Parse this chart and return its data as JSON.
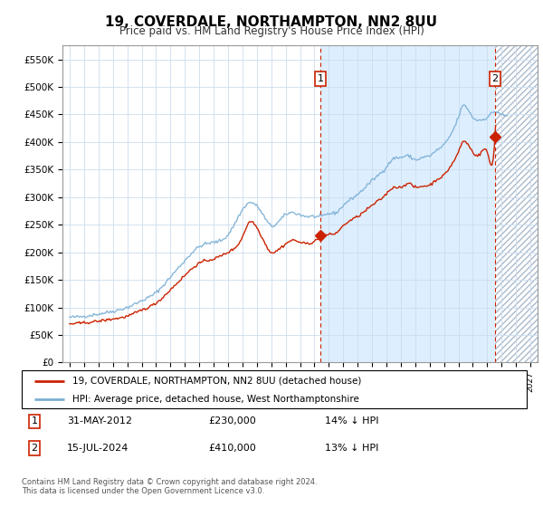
{
  "title": "19, COVERDALE, NORTHAMPTON, NN2 8UU",
  "subtitle": "Price paid vs. HM Land Registry's House Price Index (HPI)",
  "legend_line1": "19, COVERDALE, NORTHAMPTON, NN2 8UU (detached house)",
  "legend_line2": "HPI: Average price, detached house, West Northamptonshire",
  "annotation1": {
    "label": "1",
    "date": "31-MAY-2012",
    "price": "£230,000",
    "hpi": "14% ↓ HPI"
  },
  "annotation2": {
    "label": "2",
    "date": "15-JUL-2024",
    "price": "£410,000",
    "hpi": "13% ↓ HPI"
  },
  "footnote1": "Contains HM Land Registry data © Crown copyright and database right 2024.",
  "footnote2": "This data is licensed under the Open Government Licence v3.0.",
  "hpi_color": "#7bafd4",
  "price_color": "#cc2200",
  "bg_color": "#ffffff",
  "shade_color": "#ddeeff",
  "grid_color": "#ccddee",
  "ylim": [
    0,
    575000
  ],
  "yticks": [
    0,
    50000,
    100000,
    150000,
    200000,
    250000,
    300000,
    350000,
    400000,
    450000,
    500000,
    550000
  ],
  "xlim_start": 1994.5,
  "xlim_end": 2027.5,
  "sale1_year": 2012.417,
  "sale1_price": 230000,
  "sale2_year": 2024.542,
  "sale2_price": 410000
}
